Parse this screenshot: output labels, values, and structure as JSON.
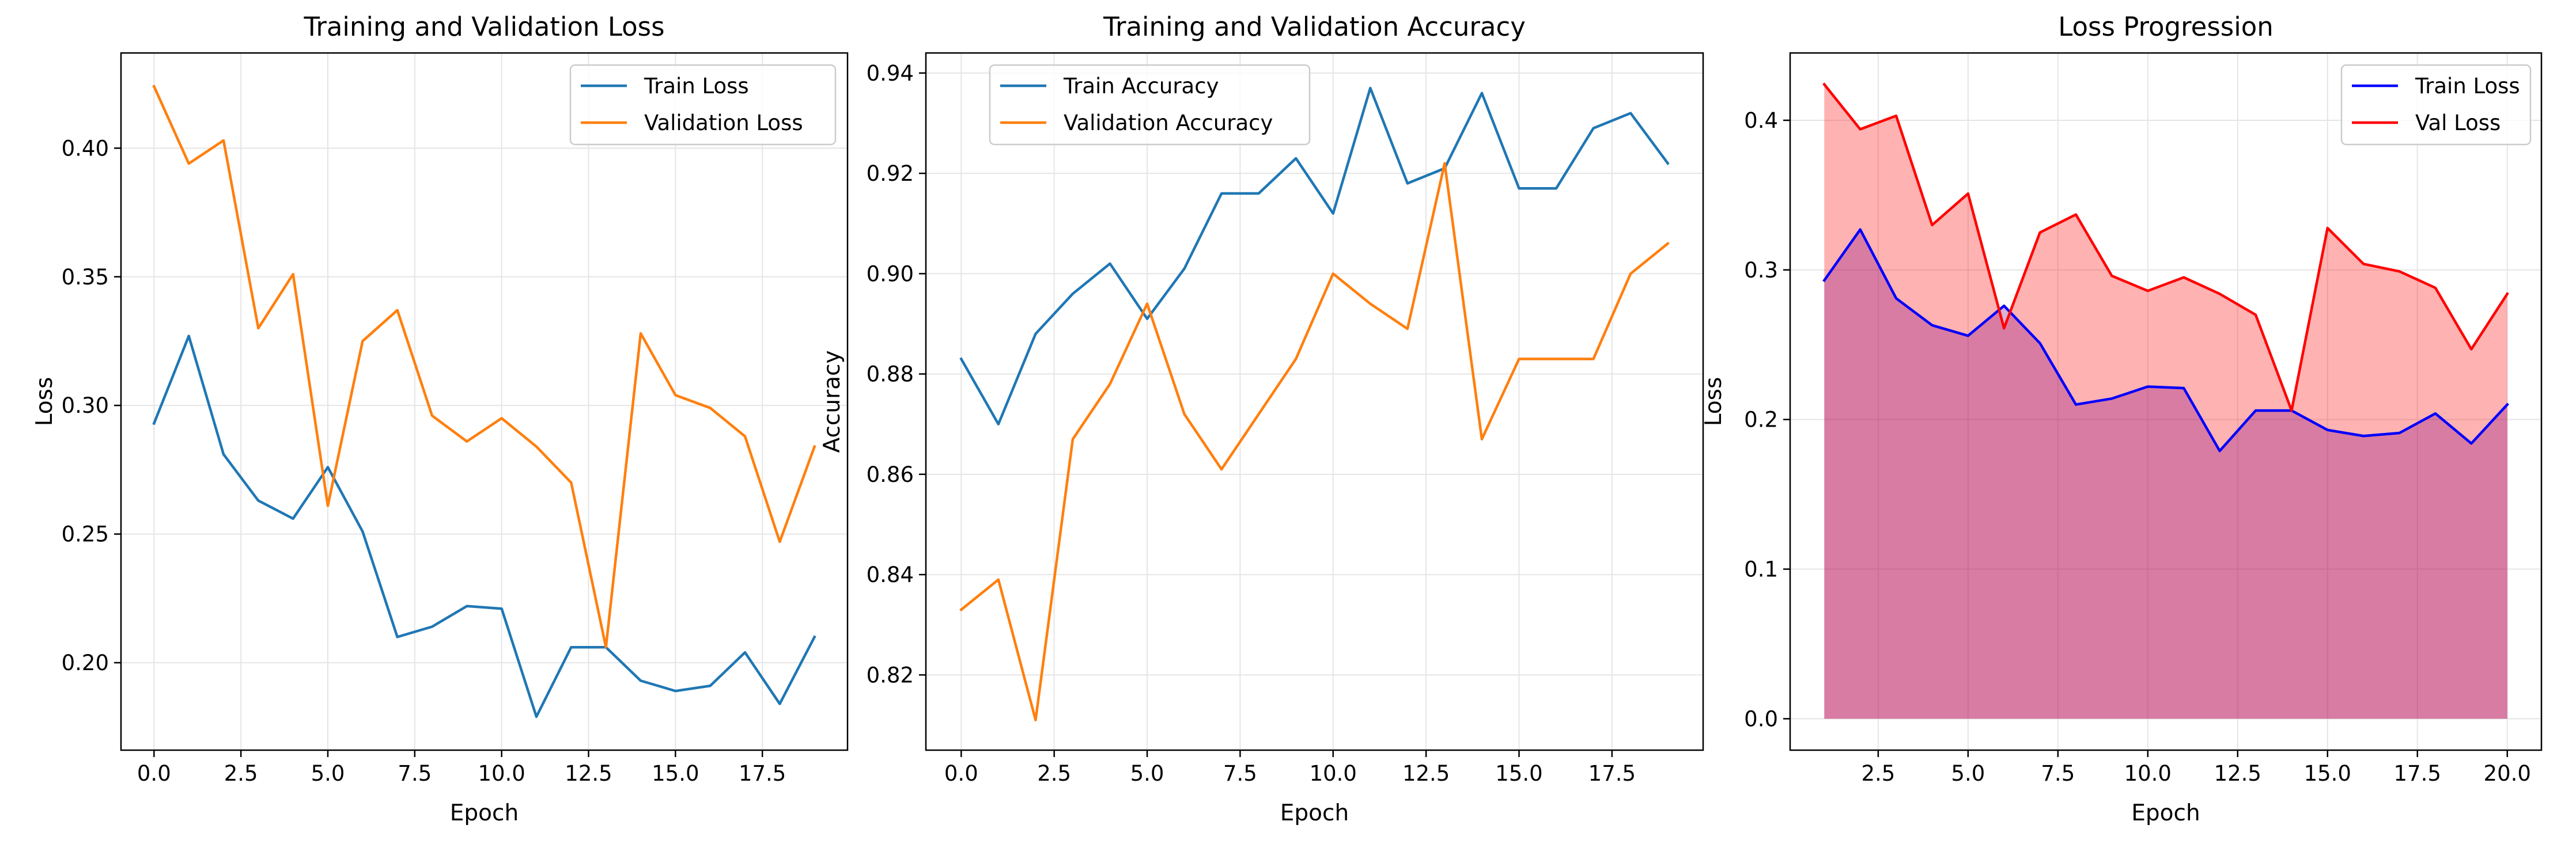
{
  "chart_data": [
    {
      "type": "line",
      "title": "Training and Validation Loss",
      "xlabel": "Epoch",
      "ylabel": "Loss",
      "xlim": [
        -0.95,
        19.95
      ],
      "ylim": [
        0.166,
        0.437
      ],
      "xticks": [
        0.0,
        2.5,
        5.0,
        7.5,
        10.0,
        12.5,
        15.0,
        17.5
      ],
      "xtick_labels": [
        "0.0",
        "2.5",
        "5.0",
        "7.5",
        "10.0",
        "12.5",
        "15.0",
        "17.5"
      ],
      "yticks": [
        0.2,
        0.25,
        0.3,
        0.35,
        0.4
      ],
      "ytick_labels": [
        "0.20",
        "0.25",
        "0.30",
        "0.35",
        "0.40"
      ],
      "grid": true,
      "legend_position": "top-right",
      "x": [
        0,
        1,
        2,
        3,
        4,
        5,
        6,
        7,
        8,
        9,
        10,
        11,
        12,
        13,
        14,
        15,
        16,
        17,
        18,
        19
      ],
      "series": [
        {
          "name": "Train Loss",
          "color": "#1f77b4",
          "values": [
            0.293,
            0.327,
            0.281,
            0.263,
            0.256,
            0.276,
            0.251,
            0.21,
            0.214,
            0.222,
            0.221,
            0.179,
            0.206,
            0.206,
            0.193,
            0.189,
            0.191,
            0.204,
            0.184,
            0.21
          ]
        },
        {
          "name": "Validation Loss",
          "color": "#ff7f0e",
          "values": [
            0.424,
            0.394,
            0.403,
            0.33,
            0.351,
            0.261,
            0.325,
            0.337,
            0.296,
            0.286,
            0.295,
            0.284,
            0.27,
            0.206,
            0.328,
            0.304,
            0.299,
            0.288,
            0.247,
            0.284
          ]
        }
      ]
    },
    {
      "type": "line",
      "title": "Training and Validation Accuracy",
      "xlabel": "Epoch",
      "ylabel": "Accuracy",
      "xlim": [
        -0.95,
        19.95
      ],
      "ylim": [
        0.805,
        0.944
      ],
      "xticks": [
        0.0,
        2.5,
        5.0,
        7.5,
        10.0,
        12.5,
        15.0,
        17.5
      ],
      "xtick_labels": [
        "0.0",
        "2.5",
        "5.0",
        "7.5",
        "10.0",
        "12.5",
        "15.0",
        "17.5"
      ],
      "yticks": [
        0.82,
        0.84,
        0.86,
        0.88,
        0.9,
        0.92,
        0.94
      ],
      "ytick_labels": [
        "0.82",
        "0.84",
        "0.86",
        "0.88",
        "0.90",
        "0.92",
        "0.94"
      ],
      "grid": true,
      "legend_position": "top-left",
      "x": [
        0,
        1,
        2,
        3,
        4,
        5,
        6,
        7,
        8,
        9,
        10,
        11,
        12,
        13,
        14,
        15,
        16,
        17,
        18,
        19
      ],
      "series": [
        {
          "name": "Train Accuracy",
          "color": "#1f77b4",
          "values": [
            0.883,
            0.87,
            0.888,
            0.896,
            0.902,
            0.891,
            0.901,
            0.916,
            0.916,
            0.923,
            0.912,
            0.937,
            0.918,
            0.921,
            0.936,
            0.917,
            0.917,
            0.929,
            0.932,
            0.922
          ]
        },
        {
          "name": "Validation Accuracy",
          "color": "#ff7f0e",
          "values": [
            0.833,
            0.839,
            0.811,
            0.867,
            0.878,
            0.894,
            0.872,
            0.861,
            0.872,
            0.883,
            0.9,
            0.894,
            0.889,
            0.922,
            0.867,
            0.883,
            0.883,
            0.883,
            0.9,
            0.906
          ]
        }
      ]
    },
    {
      "type": "area",
      "title": "Loss Progression",
      "xlabel": "Epoch",
      "ylabel": "Loss",
      "xlim": [
        0.05,
        20.95
      ],
      "ylim": [
        -0.021,
        0.445
      ],
      "xticks": [
        2.5,
        5.0,
        7.5,
        10.0,
        12.5,
        15.0,
        17.5,
        20.0
      ],
      "xtick_labels": [
        "2.5",
        "5.0",
        "7.5",
        "10.0",
        "12.5",
        "15.0",
        "17.5",
        "20.0"
      ],
      "yticks": [
        0.0,
        0.1,
        0.2,
        0.3,
        0.4
      ],
      "ytick_labels": [
        "0.0",
        "0.1",
        "0.2",
        "0.3",
        "0.4"
      ],
      "grid": true,
      "legend_position": "top-right",
      "x": [
        1,
        2,
        3,
        4,
        5,
        6,
        7,
        8,
        9,
        10,
        11,
        12,
        13,
        14,
        15,
        16,
        17,
        18,
        19,
        20
      ],
      "series": [
        {
          "name": "Train Loss",
          "color": "#0000ff",
          "fill": "#800080",
          "values": [
            0.293,
            0.327,
            0.281,
            0.263,
            0.256,
            0.276,
            0.251,
            0.21,
            0.214,
            0.222,
            0.221,
            0.179,
            0.206,
            0.206,
            0.193,
            0.189,
            0.191,
            0.204,
            0.184,
            0.21
          ]
        },
        {
          "name": "Val Loss",
          "color": "#ff0000",
          "fill": "#ff0000",
          "values": [
            0.424,
            0.394,
            0.403,
            0.33,
            0.351,
            0.261,
            0.325,
            0.337,
            0.296,
            0.286,
            0.295,
            0.284,
            0.27,
            0.206,
            0.328,
            0.304,
            0.299,
            0.288,
            0.247,
            0.284
          ]
        }
      ]
    }
  ]
}
